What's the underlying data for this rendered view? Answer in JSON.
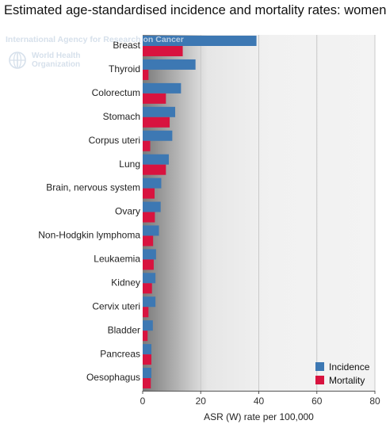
{
  "title": "Estimated age-standardised incidence and mortality rates: women",
  "logo": {
    "agency": "International Agency for Research on Cancer",
    "org_line1": "World Health",
    "org_line2": "Organization"
  },
  "colors": {
    "incidence": "#3d78b3",
    "mortality": "#d8133f"
  },
  "chart_data": {
    "type": "bar",
    "orientation": "horizontal",
    "title": "Estimated age-standardised incidence and mortality rates: women",
    "xlabel": "ASR (W) rate per 100,000",
    "ylabel": "",
    "xlim": [
      0,
      80
    ],
    "xticks": [
      0,
      20,
      40,
      60,
      80
    ],
    "grid": true,
    "legend": "bottom-right",
    "categories": [
      "Breast",
      "Thyroid",
      "Colorectum",
      "Stomach",
      "Corpus uteri",
      "Lung",
      "Brain, nervous system",
      "Ovary",
      "Non-Hodgkin lymphoma",
      "Leukaemia",
      "Kidney",
      "Cervix uteri",
      "Bladder",
      "Pancreas",
      "Oesophagus"
    ],
    "series": [
      {
        "name": "Incidence",
        "values": [
          39.2,
          18.2,
          13.2,
          11.2,
          10.2,
          9.0,
          6.4,
          6.2,
          5.6,
          4.6,
          4.4,
          4.4,
          3.5,
          3.0,
          3.0
        ]
      },
      {
        "name": "Mortality",
        "values": [
          13.8,
          2.0,
          8.0,
          9.3,
          2.6,
          8.0,
          4.1,
          4.2,
          3.6,
          3.8,
          3.2,
          2.0,
          1.7,
          3.0,
          2.8
        ]
      }
    ]
  }
}
